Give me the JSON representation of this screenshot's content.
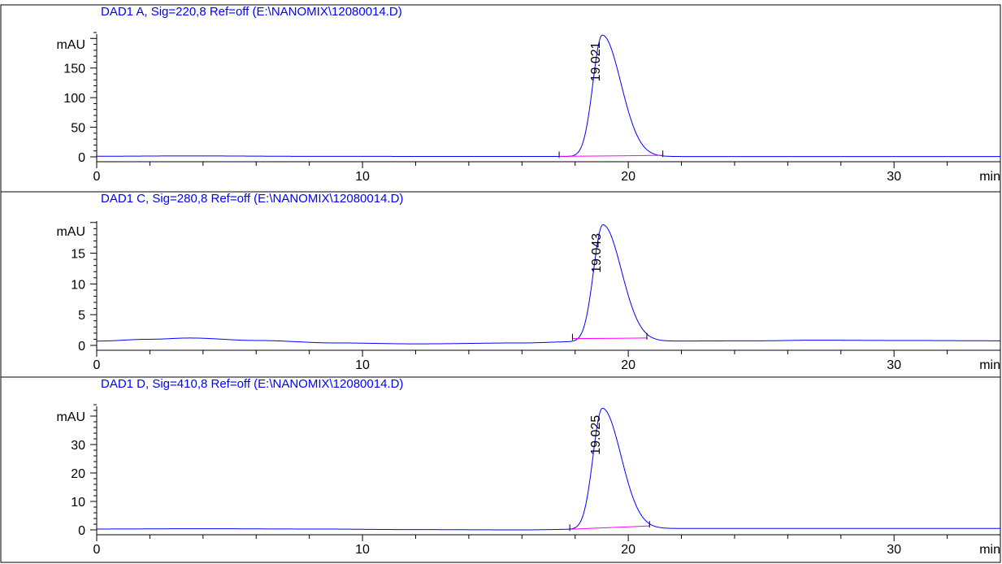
{
  "colors": {
    "signal": "#0000ff",
    "baseline": "#ff00ff",
    "axis": "#000000",
    "frame": "#000000",
    "title": "#0000ff"
  },
  "chart_data": [
    {
      "type": "line",
      "title": "DAD1 A, Sig=220,8 Ref=off (E:\\NANOMIX\\12080014.D)",
      "xlabel": "min",
      "ylabel": "mAU",
      "xlim": [
        0,
        34
      ],
      "ylim": [
        -7,
        210
      ],
      "x_ticks": [
        "0",
        "10",
        "20",
        "30"
      ],
      "y_ticks": [
        "0",
        "50",
        "100",
        "150"
      ],
      "grid": false,
      "peak": {
        "rt": 19.021,
        "label": "19.021",
        "height": 205.0,
        "sigma_left": 0.35,
        "sigma_right": 0.7
      },
      "baseline_drift": {
        "x": [
          0,
          3.5,
          8,
          15,
          20,
          25,
          30,
          34
        ],
        "y": [
          1.0,
          1.6,
          0.9,
          0.6,
          0.6,
          0.5,
          0.5,
          0.5
        ]
      },
      "integration_baseline": {
        "start": [
          17.4,
          0.8
        ],
        "end": [
          21.3,
          2.5
        ]
      }
    },
    {
      "type": "line",
      "title": "DAD1 C, Sig=280,8 Ref=off (E:\\NANOMIX\\12080014.D)",
      "xlabel": "min",
      "ylabel": "mAU",
      "xlim": [
        0,
        34
      ],
      "ylim": [
        -0.75,
        20.5
      ],
      "x_ticks": [
        "0",
        "10",
        "20",
        "30"
      ],
      "y_ticks": [
        "0",
        "5",
        "10",
        "15"
      ],
      "grid": false,
      "peak": {
        "rt": 19.043,
        "label": "19.043",
        "height": 19.0,
        "sigma_left": 0.35,
        "sigma_right": 0.7
      },
      "baseline_drift": {
        "x": [
          0,
          2,
          3.5,
          6,
          9,
          12,
          16,
          18,
          21,
          25,
          27,
          30,
          34
        ],
        "y": [
          0.7,
          1.0,
          1.2,
          0.8,
          0.4,
          0.25,
          0.4,
          0.6,
          0.7,
          0.75,
          0.85,
          0.8,
          0.75
        ]
      },
      "integration_baseline": {
        "start": [
          17.9,
          1.1
        ],
        "end": [
          20.7,
          1.2
        ]
      }
    },
    {
      "type": "line",
      "title": "DAD1 D, Sig=410,8 Ref=off (E:\\NANOMIX\\12080014.D)",
      "xlabel": "min",
      "ylabel": "mAU",
      "xlim": [
        0,
        34
      ],
      "ylim": [
        -1.6,
        44
      ],
      "x_ticks": [
        "0",
        "10",
        "20",
        "30"
      ],
      "y_ticks": [
        "0",
        "10",
        "20",
        "30"
      ],
      "grid": false,
      "peak": {
        "rt": 19.025,
        "label": "19.025",
        "height": 42.5,
        "sigma_left": 0.35,
        "sigma_right": 0.7
      },
      "baseline_drift": {
        "x": [
          0,
          4,
          8,
          12,
          16,
          18,
          22,
          26,
          30,
          34
        ],
        "y": [
          0.3,
          0.4,
          0.3,
          0.1,
          0.0,
          0.2,
          0.5,
          0.5,
          0.5,
          0.5
        ]
      },
      "integration_baseline": {
        "start": [
          17.8,
          0.2
        ],
        "end": [
          20.8,
          1.4
        ]
      }
    }
  ]
}
